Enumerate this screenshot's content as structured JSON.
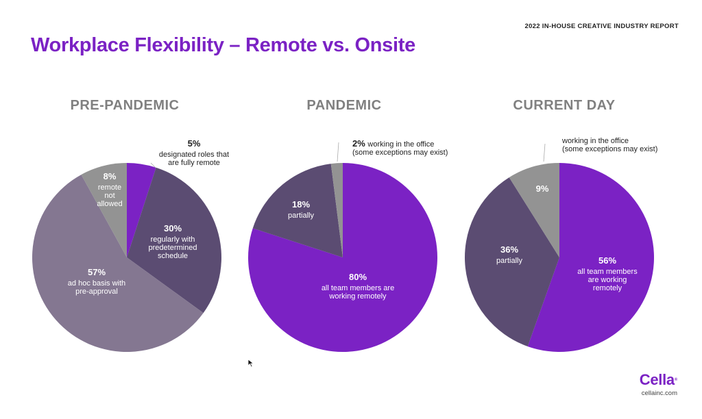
{
  "report_tag": "2022 IN-HOUSE CREATIVE INDUSTRY REPORT",
  "page_title": "Workplace Flexibility – Remote vs. Onsite",
  "brand": {
    "logo": "Cella",
    "url": "cellainc.com"
  },
  "colors": {
    "purple": "#7b22c4",
    "dark_slate": "#5b4c72",
    "lavender_gray": "#847791",
    "gray": "#939393",
    "title_purple": "#7b22c4",
    "heading_gray": "#808080"
  },
  "chart_data": [
    {
      "type": "pie",
      "title": "PRE-PANDEMIC",
      "slices": [
        {
          "pct": "5%",
          "value": 5,
          "label_lines": [
            "designated roles that",
            "are fully remote"
          ],
          "color": "#7b22c4"
        },
        {
          "pct": "30%",
          "value": 30,
          "label_lines": [
            "regularly with",
            "predetermined",
            "schedule"
          ],
          "color": "#5b4c72"
        },
        {
          "pct": "57%",
          "value": 57,
          "label_lines": [
            "ad hoc basis with",
            "pre-approval"
          ],
          "color": "#847791"
        },
        {
          "pct": "8%",
          "value": 8,
          "label_lines": [
            "remote",
            "not",
            "allowed"
          ],
          "color": "#939393"
        }
      ]
    },
    {
      "type": "pie",
      "title": "PANDEMIC",
      "slices": [
        {
          "pct": "80%",
          "value": 80,
          "label_lines": [
            "all team members are",
            "working remotely"
          ],
          "color": "#7b22c4"
        },
        {
          "pct": "18%",
          "value": 18,
          "label_lines": [
            "partially"
          ],
          "color": "#5b4c72"
        },
        {
          "pct": "2%",
          "value": 2,
          "label_lines": [
            "working in  the office",
            "(some exceptions may exist)"
          ],
          "color": "#939393"
        }
      ]
    },
    {
      "type": "pie",
      "title": "CURRENT DAY",
      "slices": [
        {
          "pct": "56%",
          "value": 56,
          "label_lines": [
            "all team members",
            "are working",
            "remotely"
          ],
          "color": "#7b22c4"
        },
        {
          "pct": "36%",
          "value": 36,
          "label_lines": [
            "partially"
          ],
          "color": "#5b4c72"
        },
        {
          "pct": "9%",
          "value": 9,
          "label_lines": [],
          "color": "#939393"
        },
        {
          "pct": "",
          "value": 0,
          "label_lines": [
            "working in the office",
            "(some exceptions may exist)"
          ],
          "color": "#939393"
        }
      ]
    }
  ]
}
